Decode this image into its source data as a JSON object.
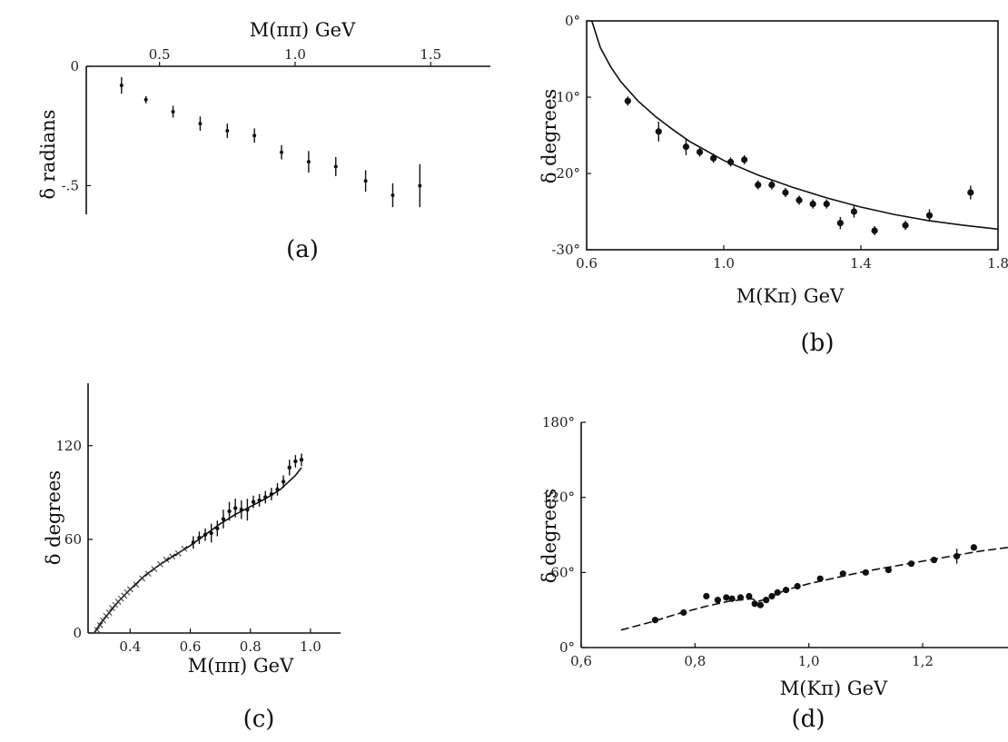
{
  "chart_data": [
    {
      "panel": "a",
      "type": "scatter",
      "panel_label": "(a)",
      "xlabel": "M(ππ) GeV",
      "ylabel": "δ radians",
      "x_axis_position": "top",
      "xlim": [
        0.23,
        1.72
      ],
      "ylim": [
        -0.62,
        0.0
      ],
      "x_ticks": [
        0.5,
        1.0,
        1.5
      ],
      "x_tick_labels": [
        "0.5",
        "1.0",
        "1.5"
      ],
      "y_ticks": [
        0.0,
        -0.5
      ],
      "y_tick_labels": [
        "0",
        "-.5"
      ],
      "error_bars": true,
      "series": [
        {
          "x": [
            0.36,
            0.45,
            0.55,
            0.65,
            0.75,
            0.85,
            0.95,
            1.05,
            1.15,
            1.26,
            1.36,
            1.46
          ],
          "y": [
            -0.08,
            -0.14,
            -0.19,
            -0.24,
            -0.27,
            -0.29,
            -0.36,
            -0.4,
            -0.42,
            -0.48,
            -0.54,
            -0.5
          ],
          "yerr": [
            0.035,
            0.015,
            0.025,
            0.03,
            0.03,
            0.03,
            0.03,
            0.045,
            0.04,
            0.045,
            0.05,
            0.09
          ]
        }
      ]
    },
    {
      "panel": "b",
      "type": "scatter",
      "panel_label": "(b)",
      "xlabel": "M(Kπ) GeV",
      "ylabel": "δ degrees",
      "xlim": [
        0.6,
        1.8
      ],
      "ylim": [
        -30,
        0
      ],
      "x_ticks": [
        0.6,
        1.0,
        1.4,
        1.8
      ],
      "x_tick_labels": [
        "0.6",
        "1.0",
        "1.4",
        "1.8"
      ],
      "y_ticks": [
        0,
        -10,
        -20,
        -30
      ],
      "y_tick_labels": [
        "0°",
        "-10°",
        "-20°",
        "-30°"
      ],
      "error_bars": true,
      "series": [
        {
          "x": [
            0.72,
            0.81,
            0.89,
            0.93,
            0.97,
            1.02,
            1.06,
            1.1,
            1.14,
            1.18,
            1.22,
            1.26,
            1.3,
            1.34,
            1.38,
            1.44,
            1.53,
            1.6,
            1.72
          ],
          "y": [
            -10.5,
            -14.5,
            -16.5,
            -17.2,
            -18.0,
            -18.5,
            -18.2,
            -21.5,
            -21.5,
            -22.5,
            -23.5,
            -24.0,
            -24.0,
            -26.5,
            -25.0,
            -27.5,
            -26.8,
            -25.5,
            -22.5
          ],
          "yerr": [
            0.6,
            1.3,
            1.1,
            0.6,
            0.6,
            0.6,
            0.6,
            0.6,
            0.6,
            0.6,
            0.6,
            0.6,
            0.6,
            0.8,
            0.8,
            0.6,
            0.6,
            0.8,
            0.9
          ]
        }
      ],
      "curve": {
        "style": "solid",
        "x": [
          0.615,
          0.64,
          0.67,
          0.7,
          0.75,
          0.8,
          0.85,
          0.9,
          1.0,
          1.1,
          1.2,
          1.3,
          1.4,
          1.5,
          1.6,
          1.7,
          1.8
        ],
        "y": [
          0.0,
          -3.5,
          -6.0,
          -8.0,
          -10.5,
          -12.5,
          -14.2,
          -15.8,
          -18.3,
          -20.2,
          -21.8,
          -23.2,
          -24.4,
          -25.4,
          -26.2,
          -26.8,
          -27.3
        ]
      }
    },
    {
      "panel": "c",
      "type": "scatter",
      "panel_label": "(c)",
      "xlabel": "M(ππ) GeV",
      "ylabel": "δ degrees",
      "xlim": [
        0.26,
        1.1
      ],
      "ylim": [
        0,
        160
      ],
      "x_ticks": [
        0.4,
        0.6,
        0.8,
        1.0
      ],
      "x_tick_labels": [
        "0.4",
        "0.6",
        "0.8",
        "1.0"
      ],
      "y_ticks": [
        0,
        60,
        120
      ],
      "y_tick_labels": [
        "0",
        "60",
        "120"
      ],
      "error_bars": true,
      "series": [
        {
          "x": [
            0.61,
            0.63,
            0.65,
            0.67,
            0.69,
            0.71,
            0.73,
            0.75,
            0.77,
            0.79,
            0.81,
            0.83,
            0.85,
            0.87,
            0.89,
            0.91,
            0.93,
            0.95,
            0.97
          ],
          "y": [
            58,
            61,
            63,
            64,
            67,
            73,
            78,
            80,
            79,
            79,
            84,
            85,
            87,
            89,
            92,
            97,
            106,
            110,
            111
          ],
          "yerr": [
            4,
            4,
            4,
            6,
            5,
            6,
            6,
            6,
            6,
            7,
            4,
            4,
            4,
            4,
            4,
            4,
            5,
            4,
            4
          ]
        }
      ],
      "curve": {
        "style": "solid",
        "x": [
          0.28,
          0.3,
          0.33,
          0.36,
          0.4,
          0.45,
          0.5,
          0.55,
          0.6,
          0.65,
          0.7,
          0.75,
          0.8,
          0.85,
          0.9,
          0.95,
          0.97
        ],
        "y": [
          0,
          6,
          13,
          20,
          28,
          37,
          44,
          50,
          56,
          63,
          70,
          76,
          81,
          86,
          92,
          101,
          106
        ]
      },
      "crosses": {
        "x": [
          0.29,
          0.3,
          0.31,
          0.32,
          0.33,
          0.34,
          0.35,
          0.36,
          0.37,
          0.38,
          0.39,
          0.4,
          0.42,
          0.44,
          0.46,
          0.48,
          0.5,
          0.52,
          0.54,
          0.56,
          0.58
        ],
        "y": [
          2,
          5,
          8,
          11,
          13,
          16,
          18,
          20,
          22,
          24,
          26,
          28,
          31,
          35,
          38,
          41,
          44,
          47,
          49,
          51,
          54
        ]
      }
    },
    {
      "panel": "d",
      "type": "scatter",
      "panel_label": "(d)",
      "xlabel": "M(Kπ) GeV",
      "ylabel": "δ degrees",
      "xlim": [
        0.6,
        1.35
      ],
      "ylim": [
        0,
        180
      ],
      "x_ticks": [
        0.6,
        0.8,
        1.0,
        1.2
      ],
      "x_tick_labels": [
        "0,6",
        "0,8",
        "1,0",
        "1,2"
      ],
      "y_ticks": [
        0,
        60,
        120,
        180
      ],
      "y_tick_labels": [
        "0°",
        "60°",
        "120°",
        "180°"
      ],
      "error_bars": true,
      "series": [
        {
          "x": [
            0.73,
            0.78,
            0.82,
            0.84,
            0.855,
            0.865,
            0.88,
            0.895,
            0.905,
            0.915,
            0.925,
            0.935,
            0.945,
            0.96,
            0.98,
            1.02,
            1.06,
            1.1,
            1.14,
            1.18,
            1.22,
            1.26,
            1.29
          ],
          "y": [
            22,
            28,
            41,
            38,
            40,
            39,
            40,
            41,
            35,
            34,
            38,
            41,
            44,
            46,
            49,
            55,
            59,
            60,
            62,
            67,
            70,
            73,
            80
          ],
          "yerr": [
            2,
            2,
            2,
            2,
            2,
            2,
            2,
            2,
            2,
            2,
            2,
            2,
            2,
            2,
            2,
            2,
            2,
            2,
            2,
            2,
            2,
            6,
            2
          ]
        }
      ],
      "curve": {
        "style": "dashed",
        "x": [
          0.67,
          0.72,
          0.77,
          0.82,
          0.86,
          0.88,
          0.9,
          0.91,
          0.92,
          0.94,
          0.96,
          1.0,
          1.05,
          1.1,
          1.15,
          1.2,
          1.25,
          1.3,
          1.35
        ],
        "y": [
          14,
          20,
          27,
          33,
          37,
          38,
          39,
          37,
          38,
          42,
          46,
          51,
          56,
          61,
          65,
          69,
          73,
          77,
          80
        ]
      }
    }
  ]
}
